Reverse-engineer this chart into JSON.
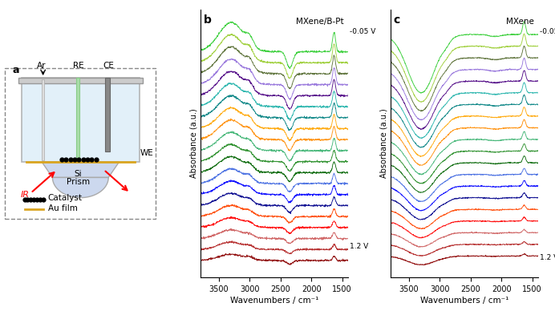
{
  "panel_b_title": "MXene/B-Pt",
  "panel_c_title": "MXene",
  "xlabel": "Wavenumbers / cm⁻¹",
  "ylabel": "Absorbance (a.u.)",
  "xticks": [
    3500,
    3000,
    2500,
    2000,
    1500
  ],
  "annotation_top": "-0.05 V",
  "annotation_bottom": "1.2 V",
  "bg_color": "#ffffff",
  "n_spectra": 20,
  "color_sequence": [
    "#8B0000",
    "#B22222",
    "#CD5C5C",
    "#FF0000",
    "#FF4500",
    "#00008B",
    "#0000FF",
    "#4169E1",
    "#006400",
    "#228B22",
    "#3CB371",
    "#FF8C00",
    "#FFA500",
    "#008080",
    "#20B2AA",
    "#4B0082",
    "#9370DB",
    "#556B2F",
    "#9ACD32",
    "#32CD32"
  ]
}
